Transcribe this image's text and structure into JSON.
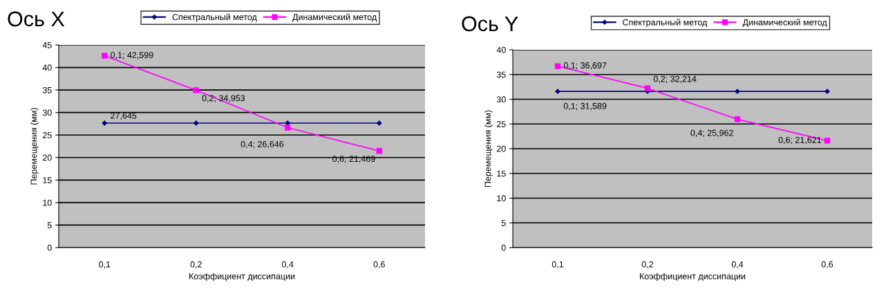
{
  "chart_data": [
    {
      "type": "line",
      "title": "Ось X",
      "xlabel": "Коэффициент диссипации",
      "ylabel": "Перемещения (мм)",
      "categories": [
        "0,1",
        "0,2",
        "0,4",
        "0,6"
      ],
      "ylim": [
        0,
        45
      ],
      "yticks": [
        0,
        5,
        10,
        15,
        20,
        25,
        30,
        35,
        40,
        45
      ],
      "grid": "y",
      "legend": "top",
      "series": [
        {
          "name": "Спектральный метод",
          "color": "#000080",
          "marker": "diamond",
          "values": [
            27.645,
            27.645,
            27.645,
            27.645
          ]
        },
        {
          "name": "Динамический метод",
          "color": "#ff00ff",
          "marker": "square",
          "values": [
            42.599,
            34.953,
            26.646,
            21.469
          ]
        }
      ],
      "annotations": [
        {
          "text": "0,1; 42,599",
          "x": "0,1",
          "y": 42.599
        },
        {
          "text": "0,2; 34,953",
          "x": "0,2",
          "y": 34.953
        },
        {
          "text": "27,645",
          "x": "0,1",
          "y": 27.645
        },
        {
          "text": "0,4; 26,646",
          "x": "0,4",
          "y": 26.646
        },
        {
          "text": "0,6; 21,469",
          "x": "0,6",
          "y": 21.469
        }
      ]
    },
    {
      "type": "line",
      "title": "Ось Y",
      "xlabel": "Коэффициент диссипации",
      "ylabel": "Перемещения (мм)",
      "categories": [
        "0,1",
        "0,2",
        "0,4",
        "0,6"
      ],
      "ylim": [
        0,
        40
      ],
      "yticks": [
        0,
        5,
        10,
        15,
        20,
        25,
        30,
        35,
        40
      ],
      "grid": "y",
      "legend": "top",
      "series": [
        {
          "name": "Спектральный метод",
          "color": "#000080",
          "marker": "diamond",
          "values": [
            31.589,
            31.589,
            31.589,
            31.589
          ]
        },
        {
          "name": "Динамический метод",
          "color": "#ff00ff",
          "marker": "square",
          "values": [
            36.697,
            32.214,
            25.962,
            21.621
          ]
        }
      ],
      "annotations": [
        {
          "text": "0,1; 36,697",
          "x": "0,1",
          "y": 36.697
        },
        {
          "text": "0,2; 32,214",
          "x": "0,2",
          "y": 32.214
        },
        {
          "text": "0,1; 31,589",
          "x": "0,1",
          "y": 31.589
        },
        {
          "text": "0,4; 25,962",
          "x": "0,4",
          "y": 25.962
        },
        {
          "text": "0,6; 21,621",
          "x": "0,6",
          "y": 21.621
        }
      ]
    }
  ]
}
